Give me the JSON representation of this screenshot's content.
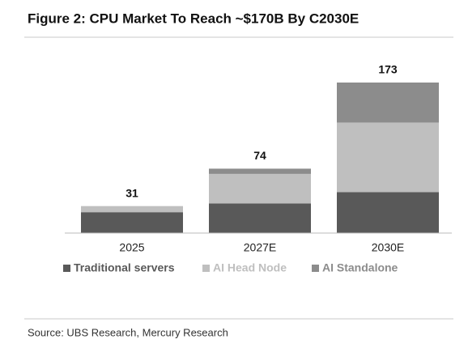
{
  "chart_data": {
    "type": "stacked-bar",
    "title": "Figure 2: CPU Market To Reach ~$170B By C2030E",
    "categories": [
      "2025",
      "2027E",
      "2030E"
    ],
    "series": [
      {
        "name": "Traditional servers",
        "color": "#595959",
        "values": [
          24,
          34,
          47
        ]
      },
      {
        "name": "AI Head Node",
        "color": "#bfbfbf",
        "values": [
          7,
          34,
          80
        ]
      },
      {
        "name": "AI Standalone",
        "color": "#8c8c8c",
        "values": [
          0,
          6,
          46
        ]
      }
    ],
    "totals": [
      31,
      74,
      173
    ],
    "source": "Source: UBS Research, Mercury Research"
  }
}
